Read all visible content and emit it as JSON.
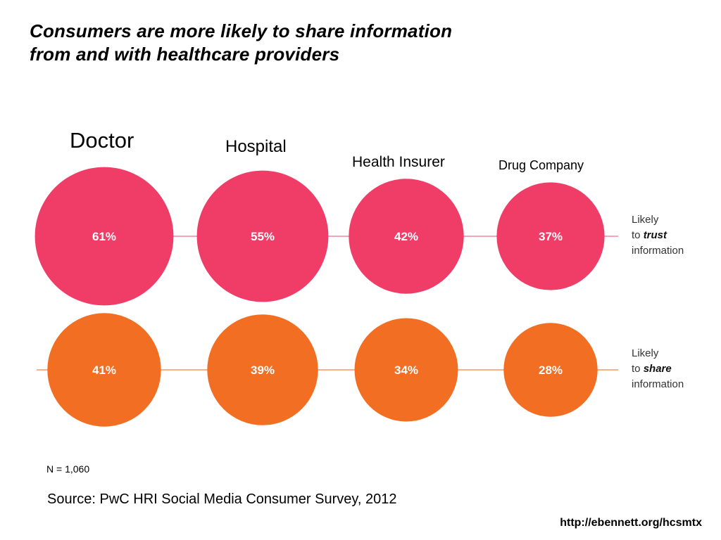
{
  "title": {
    "line1": "Consumers are more likely to share information",
    "line2": "from and with healthcare providers"
  },
  "chart_data": {
    "type": "bubble",
    "categories": [
      "Doctor",
      "Hospital",
      "Health Insurer",
      "Drug Company"
    ],
    "value_unit": "%",
    "series": [
      {
        "name_lines": [
          "Likely",
          "to",
          "trust",
          "information"
        ],
        "values": [
          61,
          55,
          42,
          37
        ],
        "color": "#ef3d67"
      },
      {
        "name_lines": [
          "Likely",
          "to",
          "share",
          "information"
        ],
        "values": [
          41,
          39,
          34,
          28
        ],
        "color": "#f26e22"
      }
    ],
    "connector_colors": [
      "#f4a4b6",
      "#f7b18a"
    ]
  },
  "notes": {
    "sample": "N = 1,060",
    "source": "Source: PwC HRI Social Media Consumer Survey, 2012",
    "url": "http://ebennett.org/hcsmtx"
  }
}
